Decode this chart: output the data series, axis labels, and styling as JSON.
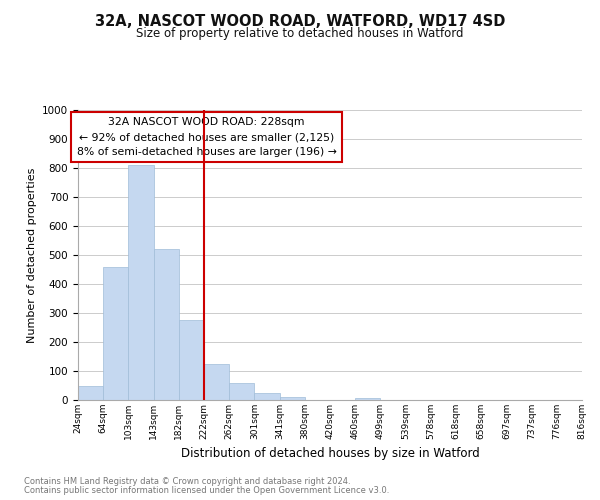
{
  "title": "32A, NASCOT WOOD ROAD, WATFORD, WD17 4SD",
  "subtitle": "Size of property relative to detached houses in Watford",
  "xlabel": "Distribution of detached houses by size in Watford",
  "ylabel": "Number of detached properties",
  "footer_line1": "Contains HM Land Registry data © Crown copyright and database right 2024.",
  "footer_line2": "Contains public sector information licensed under the Open Government Licence v3.0.",
  "bin_labels": [
    "24sqm",
    "64sqm",
    "103sqm",
    "143sqm",
    "182sqm",
    "222sqm",
    "262sqm",
    "301sqm",
    "341sqm",
    "380sqm",
    "420sqm",
    "460sqm",
    "499sqm",
    "539sqm",
    "578sqm",
    "618sqm",
    "658sqm",
    "697sqm",
    "737sqm",
    "776sqm",
    "816sqm"
  ],
  "bar_values": [
    47,
    460,
    810,
    520,
    275,
    125,
    60,
    25,
    12,
    0,
    0,
    8,
    0,
    0,
    0,
    0,
    0,
    0,
    0,
    0
  ],
  "bar_color": "#c5d8f0",
  "bar_edge_color": "#a0bcd8",
  "property_line_x": 5.0,
  "property_line_color": "#cc0000",
  "annotation_text": "32A NASCOT WOOD ROAD: 228sqm\n← 92% of detached houses are smaller (2,125)\n8% of semi-detached houses are larger (196) →",
  "annotation_box_color": "#ffffff",
  "annotation_box_edge_color": "#cc0000",
  "ylim": [
    0,
    1000
  ],
  "yticks": [
    0,
    100,
    200,
    300,
    400,
    500,
    600,
    700,
    800,
    900,
    1000
  ],
  "background_color": "#ffffff",
  "grid_color": "#cccccc"
}
